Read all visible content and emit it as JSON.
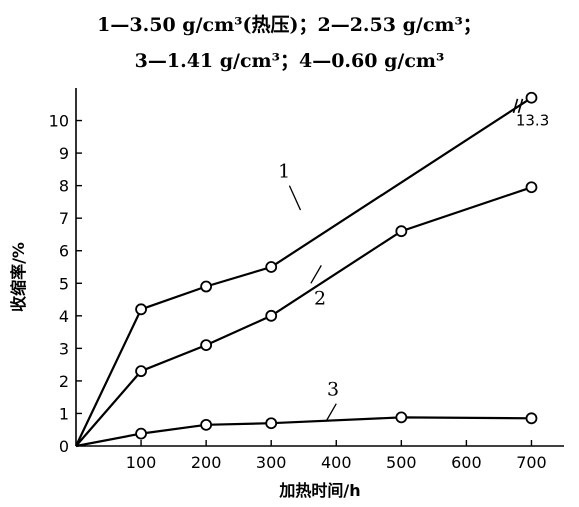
{
  "caption": {
    "line1": "1—3.50 g/cm³(热压)；2—2.53 g/cm³；",
    "line2": "3—1.41 g/cm³；4—0.60 g/cm³"
  },
  "chart_data": {
    "type": "line",
    "title": "",
    "xlabel": "加热时间/h",
    "ylabel": "收缩率/%",
    "xlim": [
      0,
      750
    ],
    "ylim": [
      0,
      11
    ],
    "x_ticks": [
      100,
      200,
      300,
      400,
      500,
      600,
      700
    ],
    "y_ticks": [
      0,
      1,
      2,
      3,
      4,
      5,
      6,
      7,
      8,
      9,
      10
    ],
    "grid": false,
    "series": [
      {
        "name": "1",
        "points": [
          [
            0,
            0
          ],
          [
            100,
            4.2
          ],
          [
            200,
            4.9
          ],
          [
            300,
            5.5
          ],
          [
            700,
            10.7
          ]
        ],
        "marker_points": [
          [
            100,
            4.2
          ],
          [
            200,
            4.9
          ],
          [
            300,
            5.5
          ],
          [
            700,
            10.7
          ]
        ]
      },
      {
        "name": "2",
        "points": [
          [
            0,
            0
          ],
          [
            100,
            2.3
          ],
          [
            200,
            3.1
          ],
          [
            300,
            4.0
          ],
          [
            500,
            6.6
          ],
          [
            700,
            7.95
          ]
        ],
        "marker_points": [
          [
            100,
            2.3
          ],
          [
            200,
            3.1
          ],
          [
            300,
            4.0
          ],
          [
            500,
            6.6
          ],
          [
            700,
            7.95
          ]
        ]
      },
      {
        "name": "3",
        "points": [
          [
            0,
            0
          ],
          [
            100,
            0.38
          ],
          [
            200,
            0.65
          ],
          [
            300,
            0.7
          ],
          [
            500,
            0.88
          ],
          [
            700,
            0.85
          ]
        ],
        "marker_points": [
          [
            100,
            0.38
          ],
          [
            200,
            0.65
          ],
          [
            300,
            0.7
          ],
          [
            500,
            0.88
          ],
          [
            700,
            0.85
          ]
        ]
      }
    ],
    "annotations": [
      {
        "text": "13.3",
        "series": "1",
        "note": "axis break on curve 1 near x=700"
      }
    ]
  }
}
